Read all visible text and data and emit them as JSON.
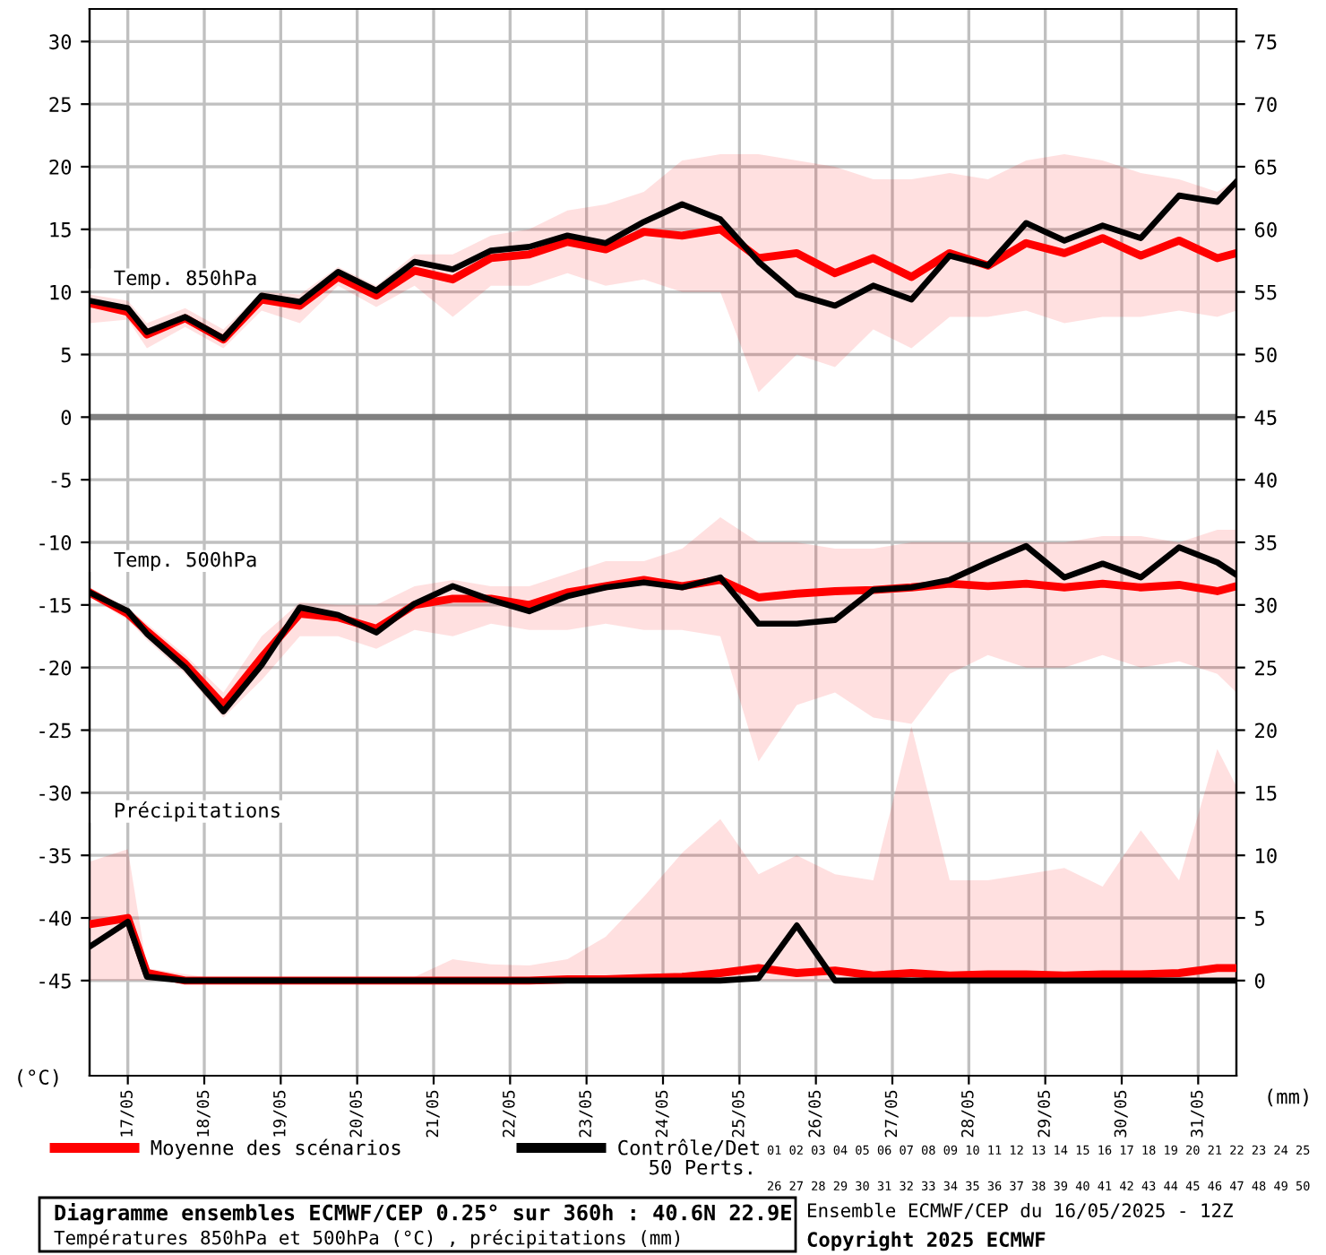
{
  "chart_data": {
    "type": "line",
    "title": "Diagramme ensembles ECMWF/CEP 0.25° sur 360h : 40.6N 22.9E",
    "subtitle": "Températures 850hPa et 500hPa (°C) , précipitations (mm)",
    "ylabel": "(°C)",
    "y2label": "(mm)",
    "x": [
      "2025-05-16T12:00",
      "2025-05-17T00:00",
      "2025-05-17T06:00",
      "2025-05-17T18:00",
      "2025-05-18T06:00",
      "2025-05-18T18:00",
      "2025-05-19T06:00",
      "2025-05-19T18:00",
      "2025-05-20T06:00",
      "2025-05-20T18:00",
      "2025-05-21T06:00",
      "2025-05-21T18:00",
      "2025-05-22T06:00",
      "2025-05-22T18:00",
      "2025-05-23T06:00",
      "2025-05-23T18:00",
      "2025-05-24T06:00",
      "2025-05-24T18:00",
      "2025-05-25T06:00",
      "2025-05-25T18:00",
      "2025-05-26T06:00",
      "2025-05-26T18:00",
      "2025-05-27T06:00",
      "2025-05-27T18:00",
      "2025-05-28T06:00",
      "2025-05-28T18:00",
      "2025-05-29T06:00",
      "2025-05-29T18:00",
      "2025-05-30T06:00",
      "2025-05-30T18:00",
      "2025-05-31T06:00",
      "2025-05-31T12:00"
    ],
    "series": [
      {
        "name": "Moyenne des scénarios",
        "color": "#ff0000",
        "values": [
          9.1,
          8.4,
          6.6,
          7.9,
          6.2,
          9.4,
          8.9,
          11.2,
          9.7,
          11.7,
          11.0,
          12.7,
          13.0,
          14.0,
          13.4,
          14.8,
          14.5,
          15.0,
          12.7,
          13.1,
          11.5,
          12.7,
          11.2,
          13.1,
          12.1,
          13.9,
          13.1,
          14.3,
          12.9,
          14.1,
          12.7,
          13.1
        ],
        "lower": [
          7.5,
          7.8,
          5.5,
          7.2,
          5.5,
          8.5,
          7.5,
          10.5,
          8.8,
          10.5,
          8.0,
          10.5,
          10.5,
          11.5,
          10.5,
          11.0,
          10.0,
          10.0,
          2.0,
          5.0,
          4.0,
          7.0,
          5.5,
          8.0,
          8.0,
          8.5,
          7.5,
          8.0,
          8.0,
          8.5,
          8.0,
          8.5
        ],
        "upper": [
          9.8,
          9.3,
          7.5,
          8.7,
          7.0,
          10.0,
          9.8,
          12.0,
          10.5,
          13.0,
          13.0,
          14.5,
          15.0,
          16.5,
          17.0,
          18.0,
          20.5,
          21.0,
          21.0,
          20.5,
          20.0,
          19.0,
          19.0,
          19.5,
          19.0,
          20.5,
          21.0,
          20.5,
          19.5,
          19.0,
          18.0,
          19.0
        ]
      },
      {
        "name": "Contrôle/Det",
        "color": "#000000",
        "values": [
          9.3,
          8.7,
          6.8,
          8.0,
          6.3,
          9.7,
          9.2,
          11.6,
          10.1,
          12.4,
          11.8,
          13.3,
          13.6,
          14.5,
          13.9,
          15.6,
          17.0,
          15.8,
          12.4,
          9.8,
          8.9,
          10.5,
          9.4,
          12.9,
          12.1,
          15.5,
          14.1,
          15.3,
          14.3,
          17.7,
          17.2,
          18.8
        ]
      },
      {
        "color": "#ff0000",
        "values": [
          -14.0,
          -15.7,
          -17.1,
          -19.7,
          -23.0,
          -19.2,
          -15.7,
          -16.0,
          -16.9,
          -15.0,
          -14.5,
          -14.5,
          -15.0,
          -14.0,
          -13.5,
          -13.0,
          -13.5,
          -13.0,
          -14.4,
          -14.1,
          -13.9,
          -13.8,
          -13.6,
          -13.3,
          -13.5,
          -13.3,
          -13.6,
          -13.3,
          -13.6,
          -13.4,
          -13.9,
          -13.5
        ],
        "lower": [
          -14.4,
          -16.2,
          -17.8,
          -20.5,
          -24.0,
          -21.0,
          -17.5,
          -17.5,
          -18.5,
          -17.0,
          -17.5,
          -16.5,
          -17.0,
          -17.0,
          -16.5,
          -17.0,
          -17.0,
          -17.5,
          -27.5,
          -23.0,
          -22.0,
          -24.0,
          -24.5,
          -20.5,
          -19.0,
          -20.0,
          -20.0,
          -19.0,
          -20.0,
          -19.5,
          -20.5,
          -22.0
        ],
        "upper": [
          -13.6,
          -15.2,
          -16.5,
          -19.0,
          -22.0,
          -17.5,
          -14.8,
          -15.0,
          -15.0,
          -13.5,
          -13.0,
          -13.5,
          -13.5,
          -12.5,
          -11.5,
          -11.5,
          -10.5,
          -8.0,
          -10.0,
          -10.0,
          -10.5,
          -10.5,
          -10.0,
          -10.0,
          -10.0,
          -10.0,
          -10.0,
          -9.5,
          -9.5,
          -10.0,
          -9.0,
          -9.0
        ]
      },
      {
        "color": "#000000",
        "values": [
          -14.0,
          -15.5,
          -17.3,
          -20.0,
          -23.5,
          -19.8,
          -15.2,
          -15.8,
          -17.2,
          -14.9,
          -13.5,
          -14.6,
          -15.5,
          -14.3,
          -13.6,
          -13.2,
          -13.6,
          -12.8,
          -16.5,
          -16.5,
          -16.2,
          -13.8,
          -13.6,
          -13.0,
          -11.6,
          -10.3,
          -12.8,
          -11.7,
          -12.8,
          -10.4,
          -11.6,
          -12.6
        ]
      },
      {
        "color": "#ff0000",
        "axis": "y2",
        "values": [
          4.5,
          5.0,
          0.6,
          0,
          0,
          0,
          0,
          0,
          0,
          0,
          0,
          0,
          0,
          0.1,
          0.1,
          0.2,
          0.3,
          0.6,
          1.0,
          0.6,
          0.8,
          0.4,
          0.6,
          0.4,
          0.5,
          0.5,
          0.4,
          0.5,
          0.5,
          0.6,
          1.0,
          1.0
        ],
        "lower": [
          0,
          0,
          0,
          0,
          0,
          0,
          0,
          0,
          0,
          0,
          0,
          0,
          0,
          0,
          0,
          0,
          0,
          0,
          0,
          0,
          0,
          0,
          0,
          0,
          0,
          0,
          0,
          0,
          0,
          0,
          0,
          0
        ],
        "upper": [
          9.5,
          10.5,
          1.0,
          0.5,
          0.1,
          0.1,
          0.1,
          0.1,
          0.2,
          0.3,
          1.7,
          1.3,
          1.2,
          1.7,
          3.5,
          6.7,
          10.2,
          12.9,
          8.5,
          10.0,
          8.5,
          8.0,
          20.3,
          8.0,
          8.0,
          8.5,
          9.0,
          7.5,
          12.0,
          8.0,
          18.5,
          15.5
        ]
      },
      {
        "color": "#000000",
        "axis": "y2",
        "values": [
          2.7,
          4.7,
          0.3,
          0,
          0,
          0,
          0,
          0,
          0,
          0,
          0,
          0,
          0,
          0,
          0,
          0,
          0,
          0,
          0.2,
          4.4,
          0,
          0,
          0,
          0,
          0,
          0,
          0,
          0,
          0,
          0,
          0,
          0
        ]
      }
    ],
    "xlim": [
      "2025-05-16T12:00",
      "2025-05-31T12:00"
    ],
    "xticks": [
      {
        "value": "2025-05-17",
        "label": "17/05"
      },
      {
        "value": "2025-05-18",
        "label": "18/05"
      },
      {
        "value": "2025-05-19",
        "label": "19/05"
      },
      {
        "value": "2025-05-20",
        "label": "20/05"
      },
      {
        "value": "2025-05-21",
        "label": "21/05"
      },
      {
        "value": "2025-05-22",
        "label": "22/05"
      },
      {
        "value": "2025-05-23",
        "label": "23/05"
      },
      {
        "value": "2025-05-24",
        "label": "24/05"
      },
      {
        "value": "2025-05-25",
        "label": "25/05"
      },
      {
        "value": "2025-05-26",
        "label": "26/05"
      },
      {
        "value": "2025-05-27",
        "label": "27/05"
      },
      {
        "value": "2025-05-28",
        "label": "28/05"
      },
      {
        "value": "2025-05-29",
        "label": "29/05"
      },
      {
        "value": "2025-05-30",
        "label": "30/05"
      },
      {
        "value": "2025-05-31",
        "label": "31/05"
      }
    ],
    "ylim": [
      -52.6,
      32.6
    ],
    "yticks": [
      30,
      25,
      20,
      15,
      10,
      5,
      0,
      -5,
      -10,
      -15,
      -20,
      -25,
      -30,
      -35,
      -40,
      -45
    ],
    "y2lim": [
      -7.6,
      77.6
    ],
    "y2ticks": [
      75,
      70,
      65,
      60,
      55,
      50,
      45,
      40,
      35,
      30,
      25,
      20,
      15,
      10,
      5,
      0
    ],
    "ref_lines": [
      {
        "axis": "y",
        "value": 0,
        "color": "#808080"
      }
    ],
    "grid": true,
    "legend": "bottom",
    "line_style": "solid",
    "annotations": [
      "Temp. 850hPa",
      "Temp. 500hPa",
      "Précipitations",
      "50 Perts.",
      "01 02 03 04 05 06 07 08 09 10 11 12 13 14 15 16 17 18 19 20 21 22 23 24 25",
      "26 27 28 29 30 31 32 33 34 35 36 37 38 39 40 41 42 43 44 45 46 47 48 49 50",
      "Ensemble ECMWF/CEP du 16/05/2025 - 12Z",
      "Copyright 2025 ECMWF"
    ]
  }
}
